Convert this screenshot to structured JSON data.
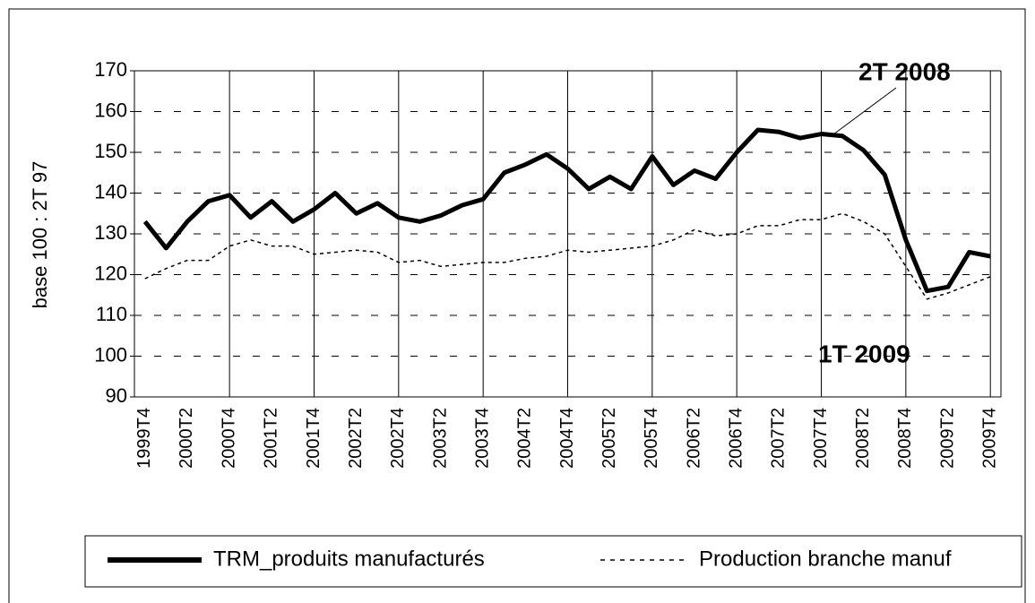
{
  "chart_data": {
    "type": "line",
    "ylabel": "base 100 : 2T 97",
    "categories": [
      "1999T4",
      null,
      "2000T2",
      null,
      "2000T4",
      null,
      "2001T2",
      null,
      "2001T4",
      null,
      "2002T2",
      null,
      "2002T4",
      null,
      "2003T2",
      null,
      "2003T4",
      null,
      "2004T2",
      null,
      "2004T4",
      null,
      "2005T2",
      null,
      "2005T4",
      null,
      "2006T2",
      null,
      "2006T4",
      null,
      "2007T2",
      null,
      "2007T4",
      null,
      "2008T2",
      null,
      "2008T4",
      null,
      "2009T2",
      null,
      "2009T4"
    ],
    "series": [
      {
        "name": "TRM_produits manufacturés",
        "color": "#000000",
        "style": "solid",
        "values": [
          133,
          126.5,
          133,
          138,
          139.5,
          134,
          138,
          133,
          136,
          140,
          135,
          137.5,
          134,
          133,
          134.5,
          137,
          138.5,
          145,
          147,
          149.5,
          146,
          141,
          144,
          141,
          149,
          142,
          145.5,
          143.5,
          150,
          155.5,
          155,
          153.5,
          154.5,
          154,
          150.5,
          144.5,
          128.5,
          116,
          117,
          125.5,
          124.5
        ]
      },
      {
        "name": "Production branche manuf",
        "color": "#000000",
        "style": "dashed",
        "values": [
          119,
          121.5,
          123.5,
          123.5,
          127,
          128.5,
          127,
          127,
          125,
          125.5,
          126,
          125.5,
          123,
          123.5,
          122,
          122.5,
          123,
          123,
          124,
          124.5,
          126,
          125.5,
          126,
          126.5,
          127,
          128.5,
          131,
          129.5,
          130,
          132,
          132,
          133.5,
          133.5,
          135,
          133,
          130,
          122,
          114,
          115.5,
          117.5,
          119.5
        ]
      }
    ],
    "annotations": [
      {
        "text": "2T 2008",
        "color": "#333399"
      },
      {
        "text": "1T 2009",
        "color": "#333399"
      }
    ],
    "ylim": [
      90,
      170
    ],
    "yticks": [
      90,
      100,
      110,
      120,
      130,
      140,
      150,
      160,
      170
    ],
    "grid": true
  }
}
